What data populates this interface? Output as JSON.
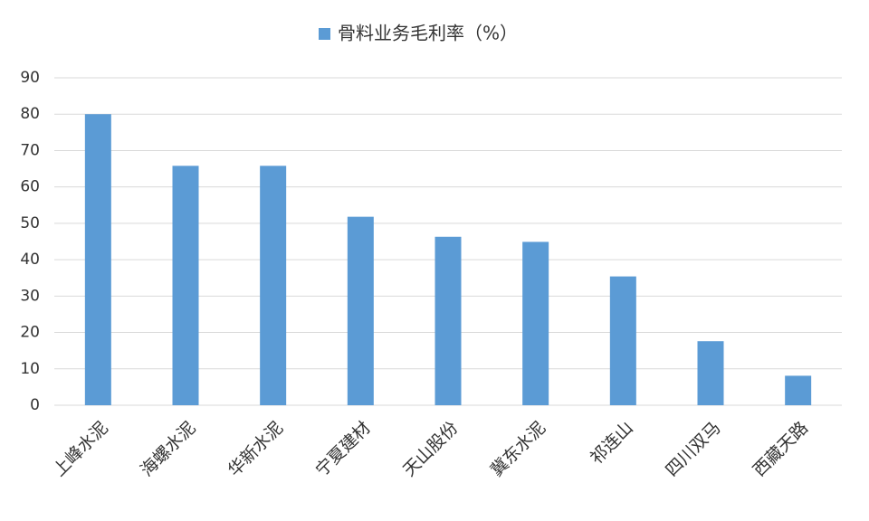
{
  "chart_data": {
    "type": "bar",
    "categories": [
      "上峰水泥",
      "海螺水泥",
      "华新水泥",
      "宁夏建材",
      "天山股份",
      "冀东水泥",
      "祁连山",
      "四川双马",
      "西藏天路"
    ],
    "series": [
      {
        "name": "骨料业务毛利率（%）",
        "color": "#5b9bd5",
        "values": [
          80,
          65.8,
          65.8,
          51.8,
          46.3,
          44.9,
          35.4,
          17.6,
          8.1
        ]
      }
    ],
    "ylim": [
      0,
      90
    ],
    "yticks": [
      0,
      10,
      20,
      30,
      40,
      50,
      60,
      70,
      80,
      90
    ],
    "grid": true,
    "legend": "top"
  }
}
